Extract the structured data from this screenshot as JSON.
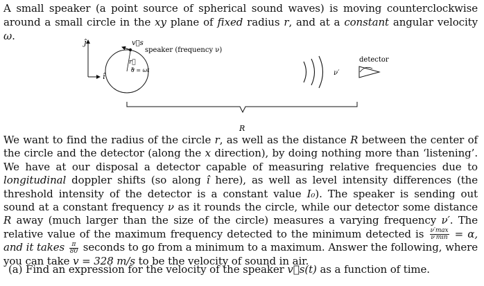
{
  "intro": {
    "t1": "A small speaker (a point source of spherical sound waves) is moving counterclockwise around a small circle in the ",
    "xy": "xy",
    "t2": " plane of ",
    "fixed": "fixed",
    "t3": " radius ",
    "r": "r",
    "t4": ", and at a ",
    "constant": "constant",
    "t5": " angular velocity ",
    "omega": "ω",
    "t6": "."
  },
  "figure": {
    "axis_j": "ĵ",
    "axis_i": "î",
    "velocity_label": "v⃗s",
    "speaker_label": "speaker (frequency ν)",
    "radius_label": "r⃗",
    "angle_label": "θ = ωt",
    "nu_prime_label": "ν′",
    "detector_label": "detector",
    "distance_label": "R"
  },
  "body": {
    "t1": "We want to find the radius of the circle ",
    "r": "r",
    "t2": ", as well as the distance ",
    "R": "R",
    "t3": " between the center of the circle and the detector (along the ",
    "x": "x",
    "t4": " direction), by doing nothing more than ‘listening’. We have at our disposal a detector capable of measuring relative frequencies due to ",
    "longitudinal": "longitudinal",
    "t5": " doppler shifts (so along ",
    "ihat": "î",
    "t6": " here), as well as level intensity differences (the threshold intensity of the detector is a constant value ",
    "I0": "I₀",
    "t7": "). The speaker is sending out sound at a constant frequency ",
    "nu": "ν",
    "t8": " as it rounds the circle, while our detector some distance ",
    "R2": "R",
    "t9": " away (much larger than the size of the circle) measures a varying frequency ",
    "nuprime": "ν′",
    "t10": ". The relative value of the maximum frequency detected to the minimum detected is ",
    "frac_num": "ν′max",
    "frac_den": "ν′min",
    "t11": " = α, and it takes ",
    "pi_num": "π",
    "pi_den": "80",
    "t12": " seconds to go from a minimum to a maximum. Answer the following, where you can take ",
    "v_eq": "v = 328 m/s",
    "t13": " to be the velocity of sound in air."
  },
  "part_a": {
    "t1": "(a) Find an expression for the velocity of the speaker ",
    "vs": "v⃗s(t)",
    "t2": " as a function of time."
  }
}
